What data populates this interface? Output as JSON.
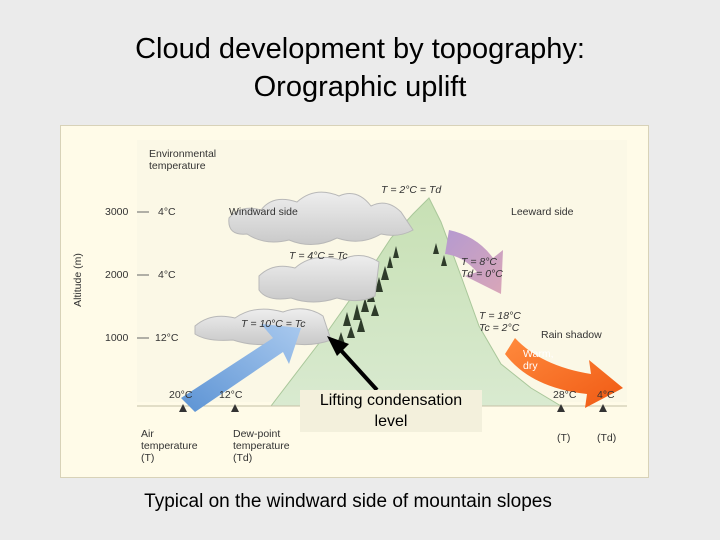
{
  "title": {
    "line1": "Cloud development by topography:",
    "line2": "Orographic uplift"
  },
  "figure": {
    "environmental_temp_label": [
      "Environmental",
      "temperature"
    ],
    "axis_title": "Altitude (m)",
    "altitudes": [
      {
        "altitude": "3000",
        "temp": "4°C"
      },
      {
        "altitude": "2000",
        "temp": "4°C"
      },
      {
        "altitude": "1000",
        "temp": "12°C"
      }
    ],
    "windward_label": "Windward side",
    "leeward_label": "Leeward side",
    "summit_label": "T = 2°C = Td",
    "upper_cloud_label": "T = 4°C = Tc",
    "lower_cloud_label": "T = 10°C = Tc",
    "descent_upper": [
      "T = 8°C",
      "Td = 0°C"
    ],
    "descent_lower": [
      "T = 18°C",
      "Tc = 2°C"
    ],
    "rain_shadow": "Rain shadow",
    "warm_dry": [
      "Warm,",
      "dry"
    ],
    "base_left_temp": "20°C",
    "base_dew_temp": "12°C",
    "base_right_temp": "28°C",
    "base_right_dew": "4°C",
    "air_temp_label": [
      "Air",
      "temperature",
      "(T)"
    ],
    "dew_point_label": [
      "Dew-point",
      "temperature",
      "(Td)"
    ],
    "t_label": "(T)",
    "td_label": "(Td)",
    "lcl_label": [
      "Lifting condensation",
      "level"
    ]
  },
  "caption": "Typical on the windward side of mountain slopes"
}
